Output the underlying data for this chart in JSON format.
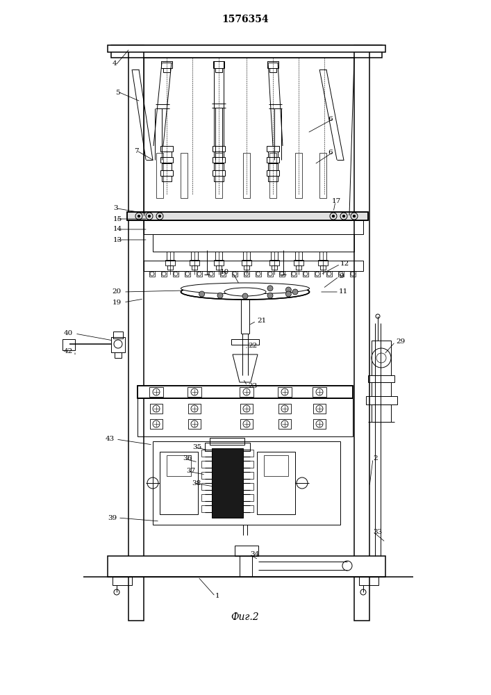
{
  "title": "1576354",
  "caption": "Фиг.2",
  "bg_color": "#ffffff",
  "line_color": "#000000",
  "title_fontsize": 10,
  "caption_fontsize": 10
}
